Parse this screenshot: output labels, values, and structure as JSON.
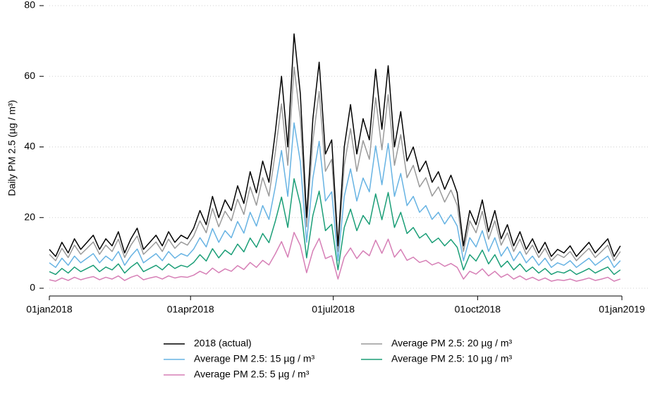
{
  "chart_data": {
    "type": "line",
    "y_label": "Daily PM 2.5 (µg / m³)",
    "x": [
      "01jan2018",
      "05jan2018",
      "09jan2018",
      "13jan2018",
      "17jan2018",
      "21jan2018",
      "25jan2018",
      "29jan2018",
      "02feb2018",
      "06feb2018",
      "10feb2018",
      "14feb2018",
      "18feb2018",
      "22feb2018",
      "26feb2018",
      "02mar2018",
      "06mar2018",
      "10mar2018",
      "14mar2018",
      "18mar2018",
      "22mar2018",
      "26mar2018",
      "30mar2018",
      "03apr2018",
      "07apr2018",
      "11apr2018",
      "15apr2018",
      "19apr2018",
      "23apr2018",
      "27apr2018",
      "01may2018",
      "05may2018",
      "09may2018",
      "13may2018",
      "17may2018",
      "21may2018",
      "25may2018",
      "29may2018",
      "02jun2018",
      "06jun2018",
      "10jun2018",
      "14jun2018",
      "18jun2018",
      "22jun2018",
      "26jun2018",
      "30jun2018",
      "04jul2018",
      "08jul2018",
      "12jul2018",
      "16jul2018",
      "20jul2018",
      "24jul2018",
      "28jul2018",
      "01aug2018",
      "05aug2018",
      "09aug2018",
      "13aug2018",
      "17aug2018",
      "21aug2018",
      "25aug2018",
      "29aug2018",
      "02sep2018",
      "06sep2018",
      "10sep2018",
      "14sep2018",
      "18sep2018",
      "22sep2018",
      "26sep2018",
      "30sep2018",
      "04oct2018",
      "08oct2018",
      "12oct2018",
      "16oct2018",
      "20oct2018",
      "24oct2018",
      "28oct2018",
      "01nov2018",
      "05nov2018",
      "09nov2018",
      "13nov2018",
      "17nov2018",
      "21nov2018",
      "25nov2018",
      "29nov2018",
      "03dec2018",
      "07dec2018",
      "11dec2018",
      "15dec2018",
      "19dec2018",
      "23dec2018",
      "27dec2018",
      "31dec2018"
    ],
    "xlim": [
      "01jan2018",
      "01jan2019"
    ],
    "xticks": [
      "01jan2018",
      "01apr2018",
      "01jul2018",
      "01oct2018",
      "01jan2019"
    ],
    "ylim": [
      0,
      80
    ],
    "yticks": [
      0,
      20,
      40,
      60,
      80
    ],
    "grid": true,
    "series": [
      {
        "name": "2018 (actual)",
        "color": "#000000",
        "values": [
          11,
          9,
          13,
          10,
          14,
          11,
          13,
          15,
          11,
          14,
          12,
          16,
          10,
          14,
          17,
          11,
          13,
          15,
          12,
          16,
          13,
          15,
          14,
          17,
          22,
          18,
          26,
          20,
          25,
          22,
          29,
          24,
          33,
          27,
          36,
          30,
          44,
          60,
          40,
          72,
          55,
          20,
          48,
          64,
          38,
          42,
          12,
          40,
          52,
          38,
          48,
          42,
          62,
          45,
          63,
          40,
          50,
          36,
          40,
          33,
          36,
          30,
          33,
          28,
          32,
          27,
          12,
          22,
          18,
          25,
          16,
          22,
          14,
          18,
          12,
          16,
          11,
          14,
          10,
          13,
          9,
          11,
          10,
          12,
          9,
          11,
          13,
          10,
          12,
          14,
          9,
          12
        ]
      },
      {
        "name": "Average PM 2.5: 20 µg / m³",
        "color": "#9a9a9a",
        "values": [
          9.6,
          7.8,
          11.3,
          8.7,
          12.2,
          9.6,
          11.3,
          13.1,
          9.6,
          12.2,
          10.4,
          13.9,
          8.7,
          12.2,
          14.8,
          9.6,
          11.3,
          13.1,
          10.4,
          13.9,
          11.3,
          13.1,
          12.2,
          14.8,
          19.1,
          15.7,
          22.6,
          17.4,
          21.8,
          19.1,
          25.2,
          20.9,
          28.7,
          23.5,
          31.3,
          26.1,
          38.3,
          52.2,
          34.8,
          62.6,
          47.9,
          17.4,
          41.8,
          55.7,
          33.1,
          36.5,
          10.4,
          34.8,
          45.2,
          33.1,
          41.8,
          36.5,
          53.9,
          39.2,
          54.8,
          34.8,
          43.5,
          31.3,
          34.8,
          28.7,
          31.3,
          26.1,
          28.7,
          24.4,
          27.8,
          23.5,
          10.4,
          19.1,
          15.7,
          21.8,
          13.9,
          19.1,
          12.2,
          15.7,
          10.4,
          13.9,
          9.6,
          12.2,
          8.7,
          11.3,
          7.8,
          9.6,
          8.7,
          10.4,
          7.8,
          9.6,
          11.3,
          8.7,
          10.4,
          12.2,
          7.8,
          10.4
        ]
      },
      {
        "name": "Average PM 2.5: 15 µg / m³",
        "color": "#67b3e3",
        "values": [
          7.2,
          5.9,
          8.5,
          6.5,
          9.1,
          7.2,
          8.5,
          9.8,
          7.2,
          9.1,
          7.8,
          10.4,
          6.5,
          9.1,
          11.1,
          7.2,
          8.5,
          9.8,
          7.8,
          10.4,
          8.5,
          9.8,
          9.1,
          11.1,
          14.3,
          11.7,
          16.9,
          13,
          16.3,
          14.3,
          18.9,
          15.6,
          21.5,
          17.6,
          23.4,
          19.5,
          28.6,
          39,
          26,
          46.8,
          35.8,
          13,
          31.2,
          41.6,
          24.7,
          27.3,
          7.8,
          26,
          33.8,
          24.7,
          31.2,
          27.3,
          40.3,
          29.3,
          41,
          26,
          32.5,
          23.4,
          26,
          21.5,
          23.4,
          19.5,
          21.5,
          18.2,
          20.8,
          17.6,
          7.8,
          14.3,
          11.7,
          16.3,
          10.4,
          14.3,
          9.1,
          11.7,
          7.8,
          10.4,
          7.2,
          9.1,
          6.5,
          8.5,
          5.9,
          7.2,
          6.5,
          7.8,
          5.9,
          7.2,
          8.5,
          6.5,
          7.8,
          9.1,
          5.9,
          7.8
        ]
      },
      {
        "name": "Average PM 2.5: 10 µg / m³",
        "color": "#1b9e77",
        "values": [
          4.7,
          3.9,
          5.6,
          4.3,
          6,
          4.7,
          5.6,
          6.5,
          4.7,
          6,
          5.2,
          6.9,
          4.3,
          6,
          7.3,
          4.7,
          5.6,
          6.5,
          5.2,
          6.9,
          5.6,
          6.5,
          6,
          7.3,
          9.5,
          7.7,
          11.2,
          8.6,
          10.8,
          9.5,
          12.5,
          10.3,
          14.2,
          11.6,
          15.5,
          12.9,
          18.9,
          25.8,
          17.2,
          31,
          23.7,
          8.6,
          20.6,
          27.5,
          16.3,
          18.1,
          5.2,
          17.2,
          22.4,
          16.3,
          20.6,
          18.1,
          26.7,
          19.4,
          27.1,
          17.2,
          21.5,
          15.5,
          17.2,
          14.2,
          15.5,
          12.9,
          14.2,
          12,
          13.8,
          11.6,
          5.2,
          9.5,
          7.7,
          10.8,
          6.9,
          9.5,
          6,
          7.7,
          5.2,
          6.9,
          4.7,
          6,
          4.3,
          5.6,
          3.9,
          4.7,
          4.3,
          5.2,
          3.9,
          4.7,
          5.6,
          4.3,
          5.2,
          6,
          3.9,
          5.2
        ]
      },
      {
        "name": "Average PM 2.5: 5 µg / m³",
        "color": "#d67fb6",
        "values": [
          2.4,
          2,
          2.9,
          2.2,
          3.1,
          2.4,
          2.9,
          3.3,
          2.4,
          3.1,
          2.6,
          3.5,
          2.2,
          3.1,
          3.7,
          2.4,
          2.9,
          3.3,
          2.6,
          3.5,
          2.9,
          3.3,
          3.1,
          3.7,
          4.8,
          4,
          5.7,
          4.4,
          5.5,
          4.8,
          6.4,
          5.3,
          7.3,
          5.9,
          7.9,
          6.6,
          9.7,
          13.2,
          8.8,
          15.8,
          12.1,
          4.4,
          10.6,
          14.1,
          8.4,
          9.2,
          2.6,
          8.8,
          11.4,
          8.4,
          10.6,
          9.2,
          13.6,
          9.9,
          13.9,
          8.8,
          11,
          7.9,
          8.8,
          7.3,
          7.9,
          6.6,
          7.3,
          6.2,
          7,
          5.9,
          2.6,
          4.8,
          4,
          5.5,
          3.5,
          4.8,
          3.1,
          4,
          2.6,
          3.5,
          2.4,
          3.1,
          2.2,
          2.9,
          2,
          2.4,
          2.2,
          2.6,
          2,
          2.4,
          2.9,
          2.2,
          2.6,
          3.1,
          2,
          2.6
        ]
      }
    ]
  }
}
